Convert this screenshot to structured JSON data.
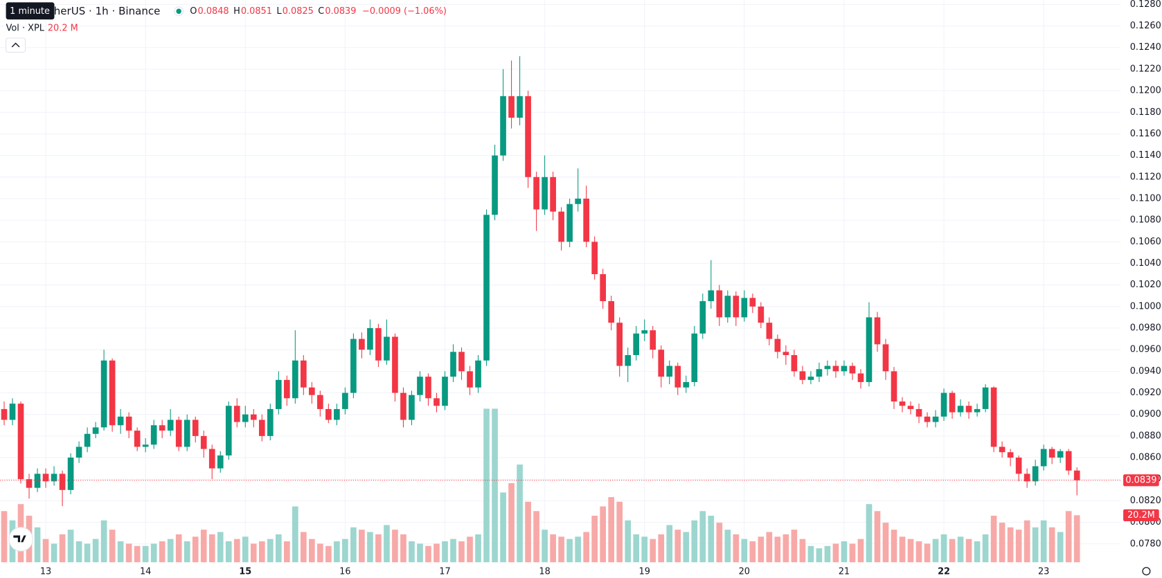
{
  "chart_data": {
    "type": "candlestick",
    "symbol": "TetherUS · 1h · Binance",
    "tooltip": "1 minute",
    "legend_labels": [
      "O",
      "H",
      "L",
      "C"
    ],
    "change": "−0.0009 (−1.06%)",
    "volume_title": "Vol · XPL",
    "volume_label": "20.2 M",
    "volume_badge": "20.2M",
    "up_color": "#089981",
    "down_color": "#f23645",
    "volume_up_color": "#9cd6cf",
    "volume_down_color": "#f7a9a7",
    "grid": true,
    "xlim": [
      -0.5,
      134.3
    ],
    "ylim": [
      0.0763,
      0.1284
    ],
    "volume_ylim": [
      0,
      80
    ],
    "xticks": [
      {
        "value": 5,
        "label": "13"
      },
      {
        "value": 17,
        "label": "14"
      },
      {
        "value": 29,
        "label": "15",
        "bold": true
      },
      {
        "value": 41,
        "label": "16"
      },
      {
        "value": 53,
        "label": "17"
      },
      {
        "value": 65,
        "label": "18"
      },
      {
        "value": 77,
        "label": "19"
      },
      {
        "value": 89,
        "label": "20"
      },
      {
        "value": 101,
        "label": "21"
      },
      {
        "value": 113,
        "label": "22",
        "bold": true
      },
      {
        "value": 125,
        "label": "23"
      }
    ],
    "yticks": [
      {
        "value": 0.078,
        "label": "0.0780"
      },
      {
        "value": 0.08,
        "label": "0.0800"
      },
      {
        "value": 0.082,
        "label": "0.0820"
      },
      {
        "value": 0.084,
        "label": "0.0840"
      },
      {
        "value": 0.086,
        "label": "0.0860"
      },
      {
        "value": 0.088,
        "label": "0.0880"
      },
      {
        "value": 0.09,
        "label": "0.0900"
      },
      {
        "value": 0.092,
        "label": "0.0920"
      },
      {
        "value": 0.094,
        "label": "0.0940"
      },
      {
        "value": 0.096,
        "label": "0.0960"
      },
      {
        "value": 0.098,
        "label": "0.0980"
      },
      {
        "value": 0.1,
        "label": "0.1000"
      },
      {
        "value": 0.102,
        "label": "0.1020"
      },
      {
        "value": 0.104,
        "label": "0.1040"
      },
      {
        "value": 0.106,
        "label": "0.1060"
      },
      {
        "value": 0.108,
        "label": "0.1080"
      },
      {
        "value": 0.11,
        "label": "0.1100"
      },
      {
        "value": 0.112,
        "label": "0.1120"
      },
      {
        "value": 0.114,
        "label": "0.1140"
      },
      {
        "value": 0.116,
        "label": "0.1160"
      },
      {
        "value": 0.118,
        "label": "0.1180"
      },
      {
        "value": 0.12,
        "label": "0.1200"
      },
      {
        "value": 0.122,
        "label": "0.1220"
      },
      {
        "value": 0.124,
        "label": "0.1240"
      },
      {
        "value": 0.126,
        "label": "0.1260"
      },
      {
        "value": 0.128,
        "label": "0.1280"
      }
    ],
    "open": [
      0.0905,
      0.0895,
      0.091,
      0.084,
      0.0832,
      0.0845,
      0.0838,
      0.0845,
      0.083,
      0.086,
      0.087,
      0.0882,
      0.0888,
      0.095,
      0.089,
      0.0898,
      0.0885,
      0.087,
      0.0872,
      0.089,
      0.0885,
      0.0895,
      0.087,
      0.0895,
      0.088,
      0.0868,
      0.085,
      0.0862,
      0.0908,
      0.0893,
      0.09,
      0.0895,
      0.088,
      0.0905,
      0.0932,
      0.0915,
      0.095,
      0.0925,
      0.0918,
      0.0905,
      0.0895,
      0.0905,
      0.092,
      0.097,
      0.096,
      0.098,
      0.095,
      0.0972,
      0.092,
      0.0895,
      0.0918,
      0.0935,
      0.0915,
      0.0908,
      0.0935,
      0.0958,
      0.094,
      0.0925,
      0.095,
      0.1085,
      0.114,
      0.1195,
      0.1175,
      0.1195,
      0.112,
      0.109,
      0.112,
      0.1088,
      0.106,
      0.1095,
      0.11,
      0.106,
      0.103,
      0.1005,
      0.0985,
      0.0945,
      0.0955,
      0.0975,
      0.0978,
      0.096,
      0.0935,
      0.0945,
      0.0925,
      0.093,
      0.0975,
      0.1005,
      0.1015,
      0.099,
      0.101,
      0.099,
      0.1008,
      0.1,
      0.0985,
      0.097,
      0.0958,
      0.0955,
      0.094,
      0.0932,
      0.0935,
      0.0942,
      0.0945,
      0.094,
      0.0945,
      0.0938,
      0.093,
      0.099,
      0.0965,
      0.094,
      0.0912,
      0.0908,
      0.0905,
      0.0898,
      0.0893,
      0.0898,
      0.092,
      0.0902,
      0.0908,
      0.0902,
      0.0905,
      0.0925,
      0.087,
      0.0865,
      0.086,
      0.0845,
      0.0838,
      0.0852,
      0.0868,
      0.086,
      0.0866,
      0.0848
    ],
    "high": [
      0.0912,
      0.0915,
      0.0912,
      0.0845,
      0.085,
      0.085,
      0.0852,
      0.0848,
      0.0864,
      0.0875,
      0.0888,
      0.0893,
      0.096,
      0.0952,
      0.0905,
      0.0902,
      0.0888,
      0.0878,
      0.0895,
      0.0895,
      0.0905,
      0.0898,
      0.09,
      0.0898,
      0.0885,
      0.0872,
      0.0866,
      0.0912,
      0.0915,
      0.0908,
      0.0905,
      0.09,
      0.091,
      0.094,
      0.0936,
      0.0978,
      0.0955,
      0.093,
      0.0922,
      0.091,
      0.091,
      0.0925,
      0.0975,
      0.0976,
      0.0988,
      0.0984,
      0.0988,
      0.0975,
      0.0925,
      0.0922,
      0.094,
      0.0938,
      0.092,
      0.094,
      0.0965,
      0.0962,
      0.0945,
      0.0955,
      0.109,
      0.115,
      0.122,
      0.1228,
      0.1232,
      0.12,
      0.1125,
      0.114,
      0.1125,
      0.1092,
      0.11,
      0.1128,
      0.1112,
      0.1065,
      0.1035,
      0.101,
      0.099,
      0.0962,
      0.0982,
      0.0988,
      0.0982,
      0.0964,
      0.095,
      0.0948,
      0.0936,
      0.0982,
      0.1012,
      0.1043,
      0.102,
      0.1015,
      0.1014,
      0.1015,
      0.1012,
      0.1004,
      0.099,
      0.0974,
      0.0964,
      0.096,
      0.0945,
      0.094,
      0.0948,
      0.095,
      0.095,
      0.095,
      0.0948,
      0.0942,
      0.1004,
      0.0995,
      0.097,
      0.0944,
      0.0916,
      0.0912,
      0.091,
      0.0902,
      0.0904,
      0.0924,
      0.0922,
      0.0914,
      0.0912,
      0.091,
      0.0928,
      0.0926,
      0.0875,
      0.0868,
      0.0862,
      0.085,
      0.0858,
      0.0872,
      0.087,
      0.0868,
      0.0868,
      0.0851
    ],
    "low": [
      0.089,
      0.089,
      0.0836,
      0.0822,
      0.0828,
      0.0832,
      0.0834,
      0.0815,
      0.0826,
      0.0855,
      0.0865,
      0.0878,
      0.0885,
      0.0884,
      0.0882,
      0.0878,
      0.0866,
      0.0865,
      0.0868,
      0.0878,
      0.088,
      0.0866,
      0.0866,
      0.0874,
      0.086,
      0.084,
      0.0846,
      0.0858,
      0.0888,
      0.0888,
      0.0888,
      0.0875,
      0.0876,
      0.09,
      0.0908,
      0.091,
      0.0918,
      0.091,
      0.0898,
      0.0892,
      0.089,
      0.09,
      0.0915,
      0.0952,
      0.0955,
      0.0944,
      0.0946,
      0.0912,
      0.0888,
      0.089,
      0.0912,
      0.0908,
      0.0902,
      0.0904,
      0.093,
      0.0932,
      0.0918,
      0.092,
      0.0945,
      0.108,
      0.1135,
      0.1165,
      0.1168,
      0.111,
      0.107,
      0.1085,
      0.108,
      0.1052,
      0.1055,
      0.1088,
      0.1055,
      0.1025,
      0.0998,
      0.0978,
      0.0935,
      0.093,
      0.095,
      0.0968,
      0.0952,
      0.0925,
      0.0928,
      0.0918,
      0.092,
      0.0926,
      0.097,
      0.0998,
      0.0982,
      0.0985,
      0.0982,
      0.0986,
      0.0994,
      0.098,
      0.0964,
      0.0952,
      0.0946,
      0.0935,
      0.0928,
      0.0928,
      0.093,
      0.0936,
      0.0934,
      0.0936,
      0.0932,
      0.0924,
      0.0926,
      0.0958,
      0.0932,
      0.0905,
      0.0902,
      0.09,
      0.0892,
      0.0888,
      0.0888,
      0.0894,
      0.0896,
      0.0898,
      0.0896,
      0.0898,
      0.0902,
      0.0865,
      0.086,
      0.0852,
      0.0838,
      0.0832,
      0.0834,
      0.0848,
      0.0854,
      0.0855,
      0.0844,
      0.0825
    ],
    "close": [
      0.0895,
      0.091,
      0.084,
      0.0832,
      0.0845,
      0.0838,
      0.0845,
      0.083,
      0.086,
      0.087,
      0.0882,
      0.0888,
      0.095,
      0.089,
      0.0898,
      0.0885,
      0.087,
      0.0872,
      0.089,
      0.0885,
      0.0895,
      0.087,
      0.0895,
      0.088,
      0.0868,
      0.085,
      0.0862,
      0.0908,
      0.0893,
      0.09,
      0.0895,
      0.088,
      0.0905,
      0.0932,
      0.0915,
      0.095,
      0.0925,
      0.0918,
      0.0905,
      0.0895,
      0.0905,
      0.092,
      0.097,
      0.096,
      0.098,
      0.095,
      0.0972,
      0.092,
      0.0895,
      0.0918,
      0.0935,
      0.0915,
      0.0908,
      0.0935,
      0.0958,
      0.094,
      0.0925,
      0.095,
      0.1085,
      0.114,
      0.1195,
      0.1175,
      0.1195,
      0.112,
      0.109,
      0.112,
      0.1088,
      0.106,
      0.1095,
      0.11,
      0.106,
      0.103,
      0.1005,
      0.0985,
      0.0945,
      0.0955,
      0.0975,
      0.0978,
      0.096,
      0.0935,
      0.0945,
      0.0925,
      0.093,
      0.0975,
      0.1005,
      0.1015,
      0.099,
      0.101,
      0.099,
      0.1008,
      0.1,
      0.0985,
      0.097,
      0.0958,
      0.0955,
      0.094,
      0.0932,
      0.0935,
      0.0942,
      0.0945,
      0.094,
      0.0945,
      0.0938,
      0.093,
      0.099,
      0.0965,
      0.094,
      0.0912,
      0.0908,
      0.0905,
      0.0898,
      0.0893,
      0.0898,
      0.092,
      0.0902,
      0.0908,
      0.0902,
      0.0905,
      0.0925,
      0.087,
      0.0865,
      0.086,
      0.0845,
      0.0838,
      0.0852,
      0.0868,
      0.086,
      0.0866,
      0.0848,
      0.0839
    ],
    "volume": [
      22,
      18,
      25,
      20,
      15,
      10,
      8,
      12,
      14,
      9,
      8,
      10,
      18,
      14,
      9,
      8,
      7,
      7,
      8,
      9,
      10,
      12,
      9,
      11,
      14,
      12,
      13,
      9,
      10,
      11,
      8,
      9,
      10,
      12,
      9,
      24,
      13,
      10,
      8,
      7,
      9,
      10,
      15,
      14,
      13,
      12,
      16,
      14,
      12,
      9,
      8,
      7,
      8,
      9,
      10,
      9,
      11,
      12,
      66,
      66,
      30,
      34,
      42,
      26,
      22,
      14,
      12,
      11,
      10,
      11,
      13,
      20,
      24,
      28,
      26,
      18,
      12,
      11,
      10,
      12,
      16,
      14,
      13,
      18,
      22,
      20,
      17,
      14,
      12,
      10,
      9,
      11,
      13,
      11,
      12,
      14,
      10,
      7,
      6,
      7,
      8,
      9,
      8,
      10,
      25,
      22,
      17,
      14,
      11,
      10,
      9,
      8,
      10,
      12,
      10,
      11,
      10,
      9,
      12,
      20,
      17,
      15,
      14,
      18,
      15,
      18,
      15,
      13,
      22,
      20.2
    ]
  }
}
